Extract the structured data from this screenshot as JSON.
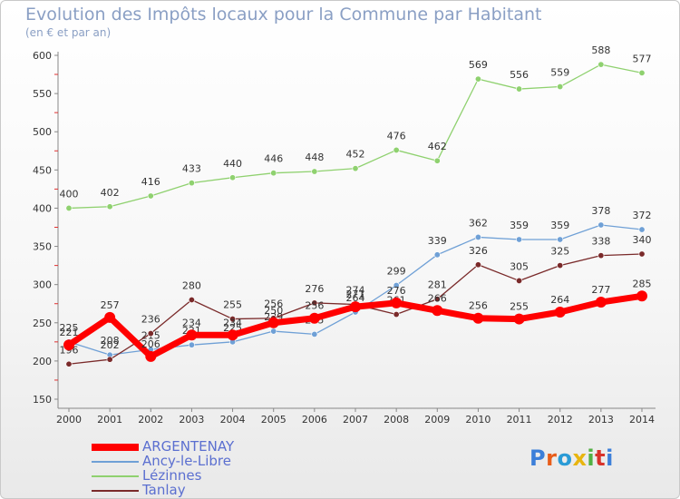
{
  "header": {
    "title": "Evolution des Impôts locaux pour la Commune par Habitant",
    "subtitle": "(en € et par an)"
  },
  "colors": {
    "argentenay": "#ff0000",
    "ancy": "#6fa0d6",
    "lezinnes": "#8fd16f",
    "tanlay": "#7a2a2a"
  },
  "logo": {
    "text": "Proxiti",
    "letter_colors": [
      "#3c7fd9",
      "#e85d1a",
      "#2a9bd6",
      "#e8b50f",
      "#52b043",
      "#d8322a",
      "#3c7fd9"
    ]
  },
  "chart_data": {
    "type": "line",
    "title": "Evolution des Impôts locaux pour la Commune par Habitant",
    "subtitle": "(en € et par an)",
    "categories": [
      "2000",
      "2001",
      "2002",
      "2003",
      "2004",
      "2005",
      "2006",
      "2007",
      "2008",
      "2009",
      "2010",
      "2011",
      "2012",
      "2013",
      "2014"
    ],
    "ylim": [
      150,
      600
    ],
    "yticks": [
      150,
      200,
      250,
      300,
      350,
      400,
      450,
      500,
      550,
      600
    ],
    "grid": false,
    "legend_position": "bottom-left",
    "series": [
      {
        "name": "ARGENTENAY",
        "color": "#ff0000",
        "width": 7,
        "values": [
          221,
          257,
          206,
          234,
          234,
          250,
          256,
          271,
          276,
          266,
          256,
          255,
          264,
          277,
          285
        ]
      },
      {
        "name": "Ancy-le-Libre",
        "color": "#6fa0d6",
        "width": 1.3,
        "values": [
          225,
          208,
          215,
          221,
          225,
          239,
          235,
          264,
          299,
          339,
          362,
          359,
          359,
          378,
          372
        ]
      },
      {
        "name": "Lézinnes",
        "color": "#8fd16f",
        "width": 1.3,
        "values": [
          400,
          402,
          416,
          433,
          440,
          446,
          448,
          452,
          476,
          462,
          569,
          556,
          559,
          588,
          577
        ]
      },
      {
        "name": "Tanlay",
        "color": "#7a2a2a",
        "width": 1.3,
        "values": [
          196,
          202,
          236,
          280,
          255,
          256,
          276,
          274,
          261,
          281,
          326,
          305,
          325,
          338,
          340
        ]
      }
    ]
  }
}
